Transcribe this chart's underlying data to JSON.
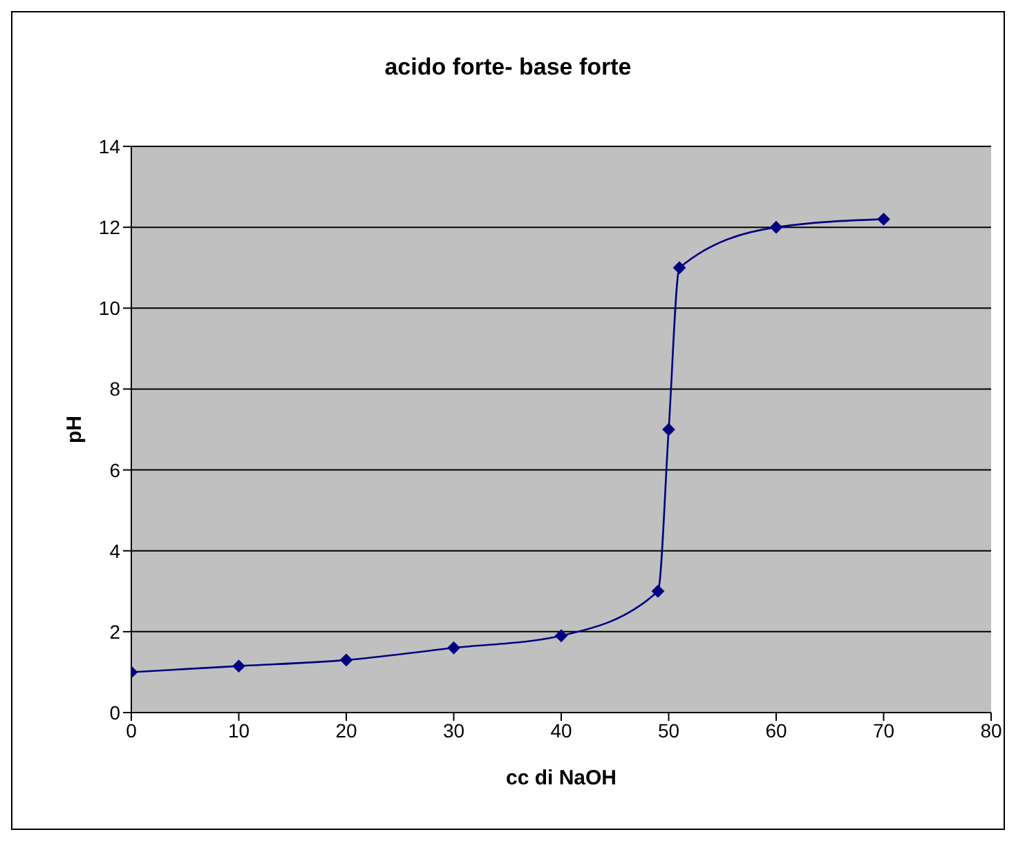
{
  "chart_data": {
    "type": "line",
    "title": "acido forte- base forte",
    "xlabel": "cc di NaOH",
    "ylabel": "pH",
    "x": [
      0,
      10,
      20,
      30,
      40,
      49,
      50,
      51,
      60,
      70
    ],
    "series": [
      {
        "color": "#000080",
        "values": [
          1,
          1.15,
          1.3,
          1.6,
          1.9,
          3,
          7,
          11,
          12,
          12.2
        ]
      }
    ],
    "xlim": [
      0,
      80
    ],
    "xticks": [
      0,
      10,
      20,
      30,
      40,
      50,
      60,
      70,
      80
    ],
    "ylim": [
      0,
      14
    ],
    "yticks": [
      0,
      2,
      4,
      6,
      8,
      10,
      12,
      14
    ],
    "grid": "y",
    "marker": "diamond",
    "line_style": "solid"
  }
}
